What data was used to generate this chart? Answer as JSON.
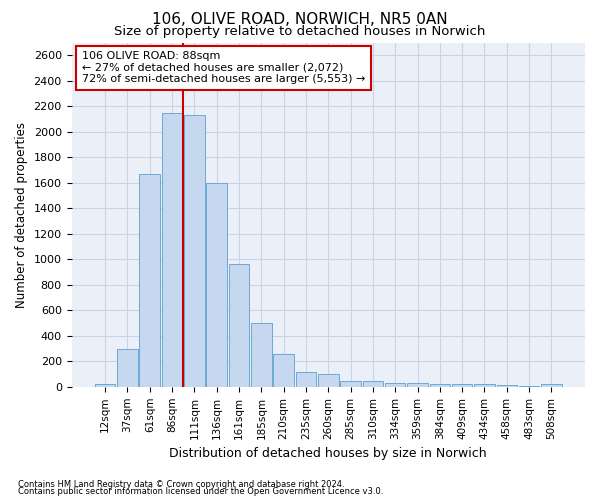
{
  "title_line1": "106, OLIVE ROAD, NORWICH, NR5 0AN",
  "title_line2": "Size of property relative to detached houses in Norwich",
  "xlabel": "Distribution of detached houses by size in Norwich",
  "ylabel": "Number of detached properties",
  "footer_line1": "Contains HM Land Registry data © Crown copyright and database right 2024.",
  "footer_line2": "Contains public sector information licensed under the Open Government Licence v3.0.",
  "annotation_line1": "106 OLIVE ROAD: 88sqm",
  "annotation_line2": "← 27% of detached houses are smaller (2,072)",
  "annotation_line3": "72% of semi-detached houses are larger (5,553) →",
  "bar_labels": [
    "12sqm",
    "37sqm",
    "61sqm",
    "86sqm",
    "111sqm",
    "136sqm",
    "161sqm",
    "185sqm",
    "210sqm",
    "235sqm",
    "260sqm",
    "285sqm",
    "310sqm",
    "334sqm",
    "359sqm",
    "384sqm",
    "409sqm",
    "434sqm",
    "458sqm",
    "483sqm",
    "508sqm"
  ],
  "bar_values": [
    25,
    300,
    1670,
    2150,
    2130,
    1600,
    960,
    500,
    255,
    120,
    100,
    45,
    45,
    30,
    30,
    20,
    20,
    20,
    18,
    5,
    20
  ],
  "bar_color": "#c5d8f0",
  "bar_edge_color": "#6aaad4",
  "vline_x_index": 3,
  "vline_color": "#cc0000",
  "box_color": "#cc0000",
  "ylim": [
    0,
    2700
  ],
  "yticks": [
    0,
    200,
    400,
    600,
    800,
    1000,
    1200,
    1400,
    1600,
    1800,
    2000,
    2200,
    2400,
    2600
  ],
  "grid_color": "#c8d4e8",
  "bg_color": "#eaeff8",
  "title1_fontsize": 11,
  "title2_fontsize": 9.5,
  "xlabel_fontsize": 9,
  "ylabel_fontsize": 8.5,
  "tick_fontsize": 7.5,
  "ytick_fontsize": 8,
  "ann_fontsize": 8,
  "footer_fontsize": 6
}
